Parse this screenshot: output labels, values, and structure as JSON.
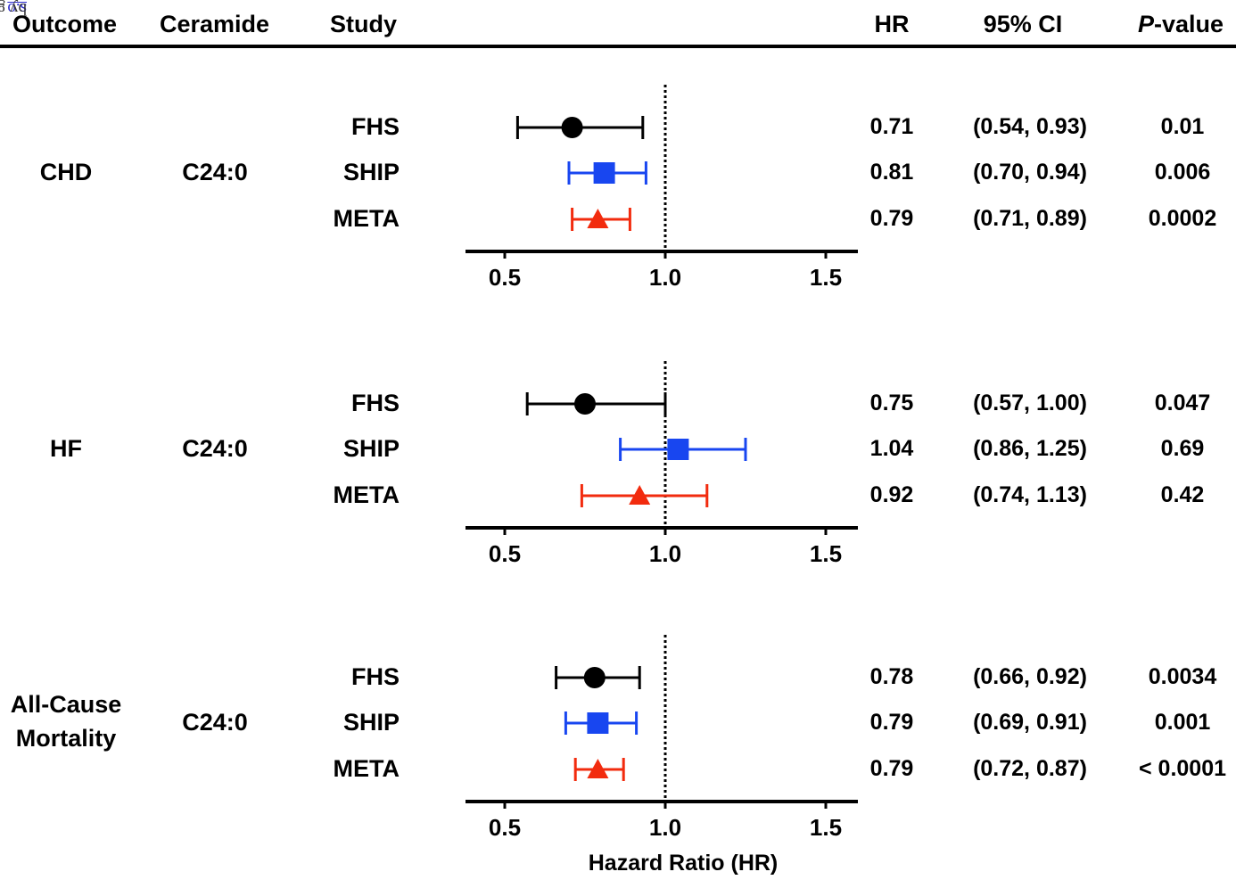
{
  "header": {
    "outcome": "Outcome",
    "ceramide": "Ceramide",
    "study": "Study",
    "hr": "HR",
    "ci": "95% CI",
    "p_italic": "P",
    "p_rest": "-value"
  },
  "side_stamp": {
    "link": "s.o",
    "text": "by guest on June 5, 2018"
  },
  "colors": {
    "FHS": "#000000",
    "SHIP": "#1846f0",
    "META": "#f22b0e"
  },
  "markers": {
    "FHS": "circle",
    "SHIP": "square",
    "META": "triangle"
  },
  "chart_data": {
    "type": "forest",
    "xlabel": "Hazard Ratio (HR)",
    "xlim": [
      0.4,
      1.55
    ],
    "xticks": [
      "0.5",
      "1.0",
      "1.5"
    ],
    "reference_line": 1.0,
    "panels": [
      {
        "outcome": "CHD",
        "ceramide": "C24:0",
        "rows": [
          {
            "study": "FHS",
            "hr": 0.71,
            "lo": 0.54,
            "hi": 0.93,
            "hr_text": "0.71",
            "ci_text": "(0.54, 0.93)",
            "p_text": "0.01"
          },
          {
            "study": "SHIP",
            "hr": 0.81,
            "lo": 0.7,
            "hi": 0.94,
            "hr_text": "0.81",
            "ci_text": "(0.70, 0.94)",
            "p_text": "0.006"
          },
          {
            "study": "META",
            "hr": 0.79,
            "lo": 0.71,
            "hi": 0.89,
            "hr_text": "0.79",
            "ci_text": "(0.71, 0.89)",
            "p_text": "0.0002"
          }
        ]
      },
      {
        "outcome": "HF",
        "ceramide": "C24:0",
        "rows": [
          {
            "study": "FHS",
            "hr": 0.75,
            "lo": 0.57,
            "hi": 1.0,
            "hr_text": "0.75",
            "ci_text": "(0.57, 1.00)",
            "p_text": "0.047"
          },
          {
            "study": "SHIP",
            "hr": 1.04,
            "lo": 0.86,
            "hi": 1.25,
            "hr_text": "1.04",
            "ci_text": "(0.86, 1.25)",
            "p_text": "0.69"
          },
          {
            "study": "META",
            "hr": 0.92,
            "lo": 0.74,
            "hi": 1.13,
            "hr_text": "0.92",
            "ci_text": "(0.74, 1.13)",
            "p_text": "0.42"
          }
        ]
      },
      {
        "outcome": "All-Cause Mortality",
        "ceramide": "C24:0",
        "rows": [
          {
            "study": "FHS",
            "hr": 0.78,
            "lo": 0.66,
            "hi": 0.92,
            "hr_text": "0.78",
            "ci_text": "(0.66, 0.92)",
            "p_text": "0.0034"
          },
          {
            "study": "SHIP",
            "hr": 0.79,
            "lo": 0.69,
            "hi": 0.91,
            "hr_text": "0.79",
            "ci_text": "(0.69, 0.91)",
            "p_text": "0.001"
          },
          {
            "study": "META",
            "hr": 0.79,
            "lo": 0.72,
            "hi": 0.87,
            "hr_text": "0.79",
            "ci_text": "(0.72, 0.87)",
            "p_text": "< 0.0001"
          }
        ]
      }
    ]
  }
}
